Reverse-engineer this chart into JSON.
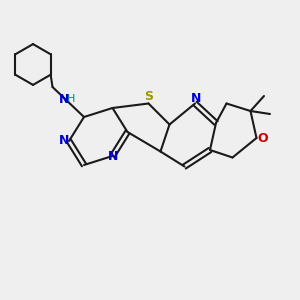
{
  "bg_color": "#efefef",
  "bond_color": "#1a1a1a",
  "N_color": "#0000cc",
  "S_color": "#999900",
  "O_color": "#cc0000",
  "NH_color": "#008888",
  "lw": 1.5,
  "xlim": [
    0,
    10
  ],
  "ylim": [
    0,
    10
  ],
  "figsize": [
    3.0,
    3.0
  ],
  "dpi": 100
}
